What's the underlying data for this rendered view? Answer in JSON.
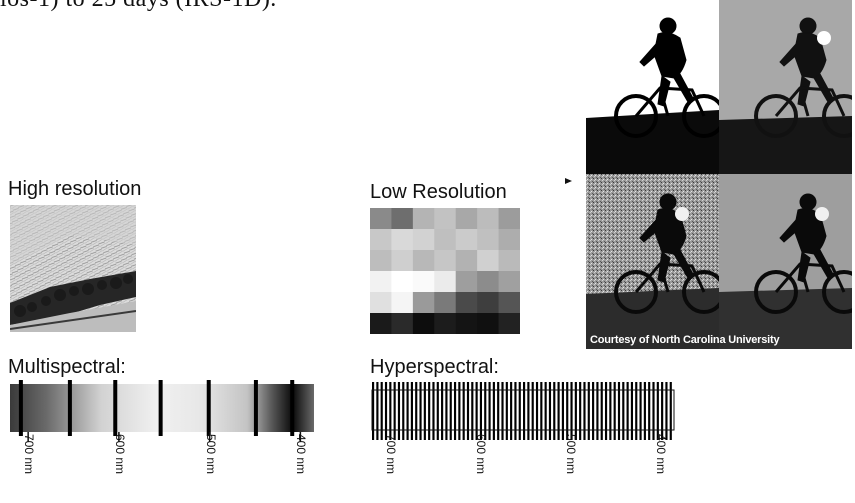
{
  "intro_text": "los-1) to 25 days (IRS-1D).",
  "high_resolution": {
    "label": "High resolution"
  },
  "low_resolution": {
    "label": "Low Resolution",
    "grid": [
      [
        "#8a8a8a",
        "#6e6e6e",
        "#b4b4b4",
        "#c2c2c2",
        "#a8a8a8",
        "#bcbcbc",
        "#9c9c9c"
      ],
      [
        "#c8c8c8",
        "#d9d9d9",
        "#d2d2d2",
        "#bfbfbf",
        "#cbcbcb",
        "#c0c0c0",
        "#adadad"
      ],
      [
        "#bdbdbd",
        "#cfcfcf",
        "#b8b8b8",
        "#c6c6c6",
        "#b2b2b2",
        "#d0d0d0",
        "#bababa"
      ],
      [
        "#f2f2f2",
        "#ffffff",
        "#fafafa",
        "#ebebeb",
        "#9e9e9e",
        "#8c8c8c",
        "#a0a0a0"
      ],
      [
        "#e0e0e0",
        "#f5f5f5",
        "#9a9a9a",
        "#7a7a7a",
        "#4a4a4a",
        "#3e3e3e",
        "#555555"
      ],
      [
        "#1a1a1a",
        "#2a2a2a",
        "#0d0d0d",
        "#1c1c1c",
        "#141414",
        "#101010",
        "#222222"
      ]
    ]
  },
  "photo_panel": {
    "caption": "Courtesy of North Carolina University"
  },
  "multispectral": {
    "label": "Multispectral:",
    "ticks": [
      {
        "nm": 700,
        "text": "700 nm"
      },
      {
        "nm": 600,
        "text": "600 nm"
      },
      {
        "nm": 500,
        "text": "500 nm"
      },
      {
        "nm": 400,
        "text": "400 nm"
      }
    ],
    "band_lines_nm": [
      708,
      654,
      604,
      554,
      501,
      449,
      409
    ]
  },
  "hyperspectral": {
    "label": "Hyperspectral:",
    "ticks": [
      {
        "nm": 700,
        "text": "700 nm"
      },
      {
        "nm": 600,
        "text": "600 nm"
      },
      {
        "nm": 500,
        "text": "500 nm"
      },
      {
        "nm": 400,
        "text": "400 nm"
      }
    ],
    "band_count": 70
  },
  "colors": {
    "text": "#111111",
    "band_line": "#000000"
  }
}
